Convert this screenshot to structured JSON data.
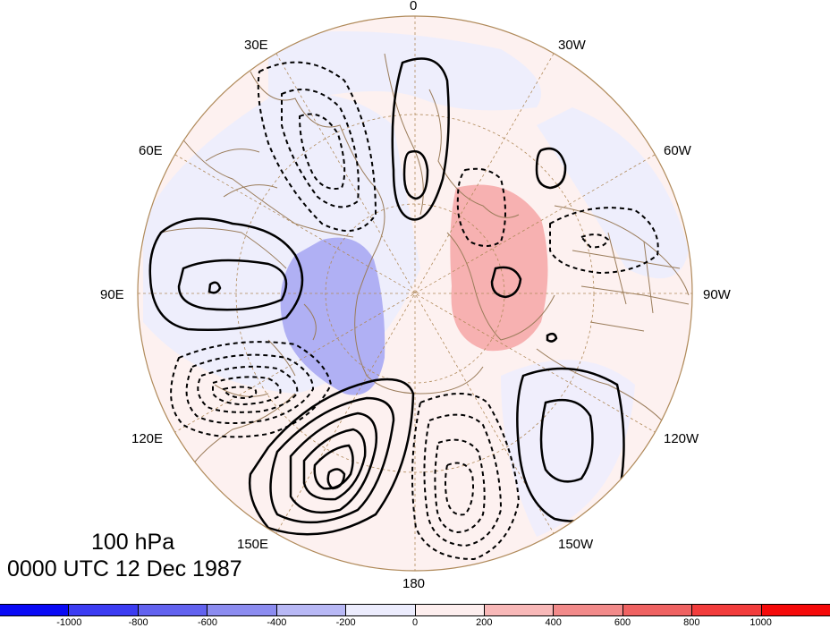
{
  "title": {
    "level": "100 hPa",
    "time": "0000 UTC 12 Dec 1987"
  },
  "longitude_labels": {
    "lon_0": "0",
    "lon_30w": "30W",
    "lon_60w": "60W",
    "lon_90w": "90W",
    "lon_120w": "120W",
    "lon_150w": "150W",
    "lon_180": "180",
    "lon_150e": "150E",
    "lon_120e": "120E",
    "lon_90e": "90E",
    "lon_60e": "60E",
    "lon_30e": "30E"
  },
  "colorbar": {
    "colors": [
      "#0a0af5",
      "#3c3cf2",
      "#6262ef",
      "#8c8cf0",
      "#b8b8f5",
      "#ececfd",
      "#fdeeee",
      "#f8b8b8",
      "#f28a8a",
      "#ef6262",
      "#f23c3c",
      "#f50a0a"
    ],
    "ticks": [
      "-1000",
      "-800",
      "-600",
      "-400",
      "-200",
      "0",
      "200",
      "400",
      "600",
      "800",
      "1000"
    ]
  }
}
